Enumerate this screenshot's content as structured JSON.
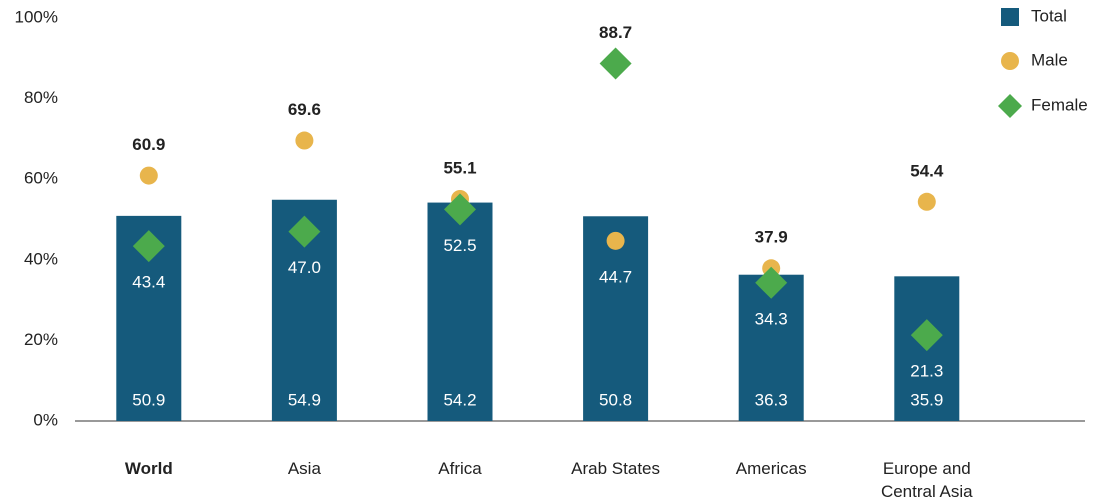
{
  "chart_data": {
    "type": "bar",
    "categories": [
      "World",
      "Asia",
      "Africa",
      "Arab States",
      "Americas",
      "Europe and\nCentral Asia"
    ],
    "series": [
      {
        "name": "Total",
        "color": "#155a7c",
        "values": [
          50.9,
          54.9,
          54.2,
          50.8,
          36.3,
          35.9
        ],
        "value_labels": [
          "50.9",
          "54.9",
          "54.2",
          "50.8",
          "36.3",
          "35.9"
        ]
      },
      {
        "name": "Male",
        "color": "#e8b54c",
        "values": [
          60.9,
          69.6,
          55.1,
          44.7,
          37.9,
          54.4
        ],
        "value_labels": [
          "60.9",
          "69.6",
          "55.1",
          "44.7",
          "37.9",
          "54.4"
        ]
      },
      {
        "name": "Female",
        "color": "#4caa4c",
        "values": [
          43.4,
          47.0,
          52.5,
          88.7,
          34.3,
          21.3
        ],
        "value_labels": [
          "43.4",
          "47.0",
          "52.5",
          "88.7",
          "34.3",
          "21.3"
        ]
      }
    ],
    "ylim": [
      0,
      100
    ],
    "yticks": [
      {
        "value": 0,
        "label": "0%"
      },
      {
        "value": 20,
        "label": "20%"
      },
      {
        "value": 40,
        "label": "40%"
      },
      {
        "value": 60,
        "label": "60%"
      },
      {
        "value": 80,
        "label": "80%"
      },
      {
        "value": 100,
        "label": "100%"
      }
    ],
    "legend": "top-right"
  }
}
